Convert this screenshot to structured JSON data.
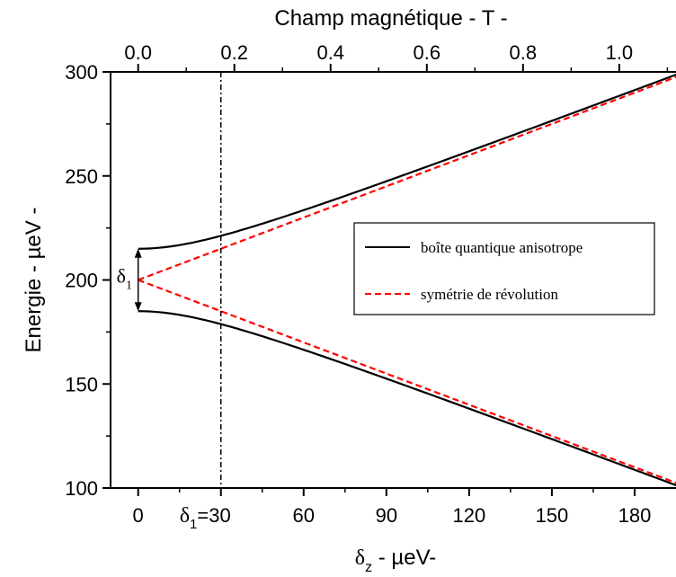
{
  "chart_data": {
    "type": "line",
    "title": "",
    "xlabel": {
      "symbol": "δ",
      "sub": "z",
      "rest": " - µeV-"
    },
    "ylabel": "Energie - µeV -",
    "x2label": "Champ magnétique - T -",
    "xlim": [
      -10,
      195
    ],
    "ylim": [
      100,
      300
    ],
    "x_ticks": [
      0,
      30,
      60,
      90,
      120,
      150,
      180
    ],
    "x_tick_labels": [
      "0",
      "30",
      "60",
      "90",
      "120",
      "150",
      "180"
    ],
    "x_tick_prefix": {
      "symbol": "δ",
      "sub": "1",
      "rest": "="
    },
    "y_ticks": [
      100,
      150,
      200,
      250,
      300
    ],
    "y_tick_labels": [
      "100",
      "150",
      "200",
      "250",
      "300"
    ],
    "x2_ticks": [
      0.0,
      0.2,
      0.4,
      0.6,
      0.8,
      1.0
    ],
    "x2_tick_labels": [
      "0.0",
      "0.2",
      "0.4",
      "0.6",
      "0.8",
      "1.0"
    ],
    "x2_per_delta": 0.005733,
    "grid": false,
    "legend_position": "center-right",
    "series": [
      {
        "name": "boîte quantique anisotrope",
        "color": "#000000",
        "dash": "solid",
        "center": 200,
        "delta1": 30,
        "branches": [
          "upper",
          "lower"
        ]
      },
      {
        "name": "symétrie de révolution",
        "color": "#ff0000",
        "dash": "dashed",
        "center": 200,
        "delta1": 0,
        "branches": [
          "upper",
          "lower"
        ]
      }
    ],
    "annotations": {
      "delta1_label": {
        "symbol": "δ",
        "sub": "1"
      },
      "vline_x": 30
    }
  }
}
